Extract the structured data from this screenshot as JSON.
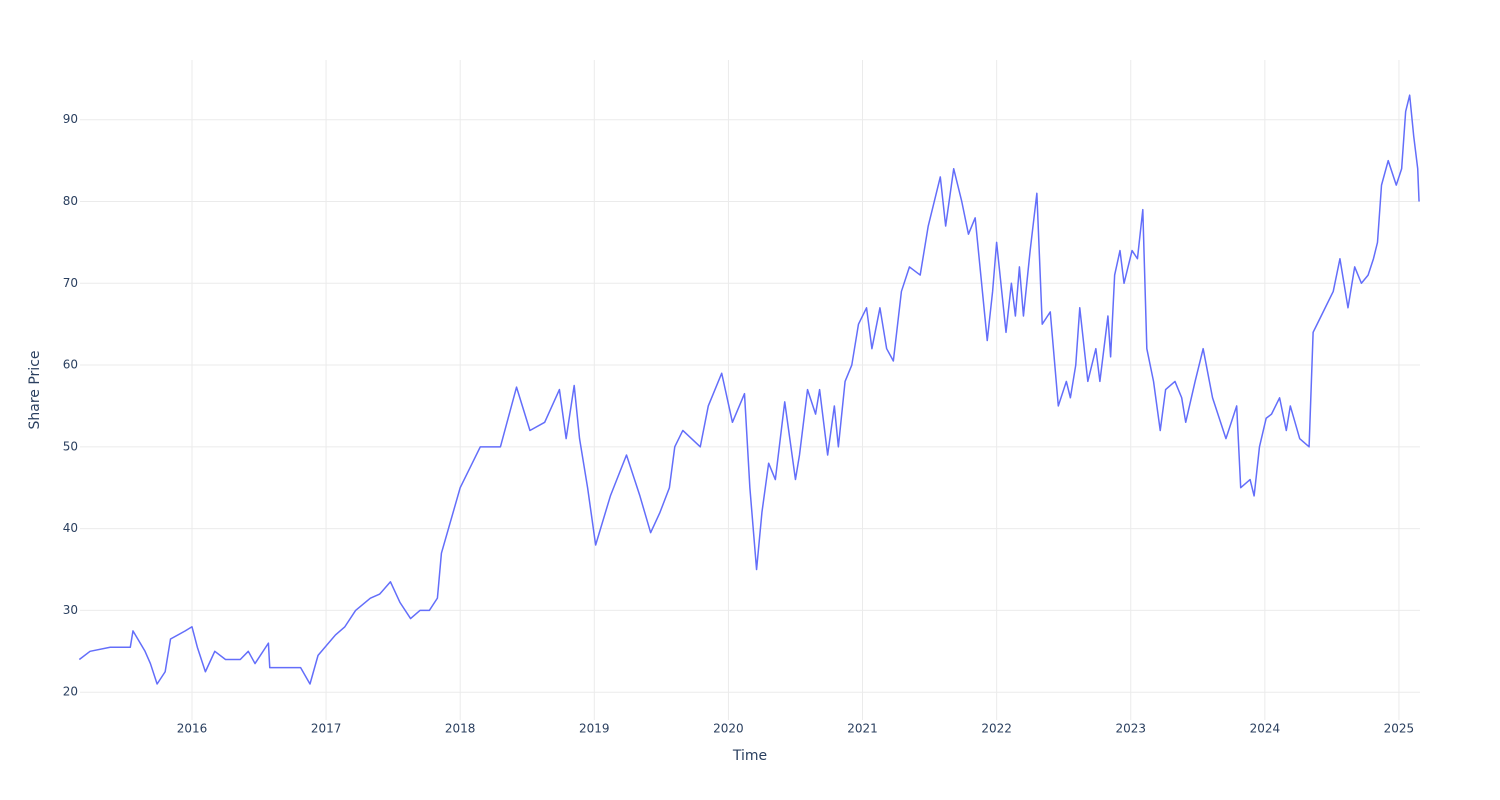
{
  "chart_data": {
    "type": "line",
    "xlabel": "Time",
    "ylabel": "Share Price",
    "xlim": [
      2015.165,
      2025.157
    ],
    "ylim": [
      16.6,
      97.3
    ],
    "xticks": [
      2016,
      2017,
      2018,
      2019,
      2020,
      2021,
      2022,
      2023,
      2024,
      2025
    ],
    "yticks": [
      20,
      30,
      40,
      50,
      60,
      70,
      80,
      90
    ],
    "grid": true,
    "series": [
      {
        "color": "#636efa",
        "x": [
          2015.16,
          2015.24,
          2015.39,
          2015.54,
          2015.56,
          2015.65,
          2015.69,
          2015.74,
          2015.8,
          2015.84,
          2015.95,
          2016.0,
          2016.04,
          2016.1,
          2016.17,
          2016.25,
          2016.36,
          2016.42,
          2016.47,
          2016.57,
          2016.58,
          2016.69,
          2016.81,
          2016.88,
          2016.94,
          2017.07,
          2017.14,
          2017.22,
          2017.33,
          2017.4,
          2017.48,
          2017.55,
          2017.63,
          2017.7,
          2017.77,
          2017.83,
          2017.86,
          2018.0,
          2018.15,
          2018.3,
          2018.42,
          2018.52,
          2018.63,
          2018.74,
          2018.79,
          2018.85,
          2018.89,
          2018.95,
          2019.01,
          2019.12,
          2019.24,
          2019.34,
          2019.42,
          2019.49,
          2019.56,
          2019.6,
          2019.66,
          2019.79,
          2019.85,
          2019.95,
          2020.03,
          2020.12,
          2020.16,
          2020.21,
          2020.25,
          2020.3,
          2020.35,
          2020.42,
          2020.5,
          2020.53,
          2020.59,
          2020.65,
          2020.68,
          2020.74,
          2020.79,
          2020.82,
          2020.87,
          2020.92,
          2020.97,
          2021.03,
          2021.07,
          2021.13,
          2021.18,
          2021.23,
          2021.29,
          2021.35,
          2021.43,
          2021.49,
          2021.58,
          2021.62,
          2021.68,
          2021.74,
          2021.79,
          2021.84,
          2021.9,
          2021.93,
          2021.97,
          2022.0,
          2022.07,
          2022.11,
          2022.14,
          2022.17,
          2022.2,
          2022.25,
          2022.3,
          2022.34,
          2022.4,
          2022.46,
          2022.52,
          2022.55,
          2022.59,
          2022.62,
          2022.68,
          2022.74,
          2022.77,
          2022.83,
          2022.85,
          2022.88,
          2022.92,
          2022.95,
          2023.01,
          2023.05,
          2023.09,
          2023.12,
          2023.17,
          2023.22,
          2023.26,
          2023.33,
          2023.38,
          2023.41,
          2023.48,
          2023.54,
          2023.61,
          2023.71,
          2023.79,
          2023.82,
          2023.89,
          2023.92,
          2023.96,
          2024.01,
          2024.05,
          2024.11,
          2024.16,
          2024.19,
          2024.26,
          2024.33,
          2024.36,
          2024.42,
          2024.51,
          2024.56,
          2024.62,
          2024.67,
          2024.72,
          2024.77,
          2024.81,
          2024.84,
          2024.87,
          2024.92,
          2024.98,
          2025.02,
          2025.05,
          2025.08,
          2025.11,
          2025.14,
          2025.15
        ],
        "values": [
          24,
          25,
          25.5,
          25.5,
          27.5,
          25,
          23.5,
          21,
          22.5,
          26.5,
          27.5,
          28,
          25.5,
          22.5,
          25,
          24,
          24,
          25,
          23.5,
          26,
          23,
          23,
          23,
          21,
          24.5,
          27,
          28,
          30,
          31.5,
          32,
          33.5,
          31,
          29,
          30,
          30,
          31.5,
          37,
          45,
          50,
          50,
          57.3,
          52,
          53,
          57,
          51,
          57.5,
          51,
          45,
          38,
          44,
          49,
          44,
          39.5,
          42,
          45,
          50,
          52,
          50,
          55,
          59,
          53,
          56.5,
          45,
          35,
          42,
          48,
          46,
          55.5,
          46,
          49,
          57,
          54,
          57,
          49,
          55,
          50,
          58,
          60,
          65,
          67,
          62,
          67,
          62,
          60.5,
          69,
          72,
          71,
          77,
          83,
          77,
          84,
          80,
          76,
          78,
          68,
          63,
          69,
          75,
          64,
          70,
          66,
          72,
          66,
          74,
          81,
          65,
          66.5,
          55,
          58,
          56,
          60,
          67,
          58,
          62,
          58,
          66,
          61,
          71,
          74,
          70,
          74,
          73,
          79,
          62,
          58,
          52,
          57,
          58,
          56,
          53,
          58,
          62,
          56,
          51,
          55,
          45,
          46,
          44,
          50,
          53.5,
          54,
          56,
          52,
          55,
          51,
          50,
          64,
          66,
          69,
          73,
          67,
          72,
          70,
          71,
          73,
          75,
          82,
          85,
          82,
          84,
          91,
          93,
          88,
          84,
          80
        ]
      }
    ]
  }
}
